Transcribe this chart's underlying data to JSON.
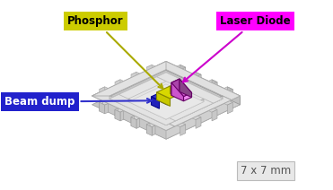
{
  "fig_width": 3.71,
  "fig_height": 2.12,
  "dpi": 100,
  "bg_color": "#ffffff",
  "phosphor_label_bg": "#cccc00",
  "laser_label_bg": "#ff00ff",
  "beam_dump_label_bg": "#2222cc",
  "size_label": "7 x 7 mm",
  "phosphor_label": "Phosphor",
  "laser_label": "Laser Diode",
  "beam_dump_label": "Beam dump"
}
